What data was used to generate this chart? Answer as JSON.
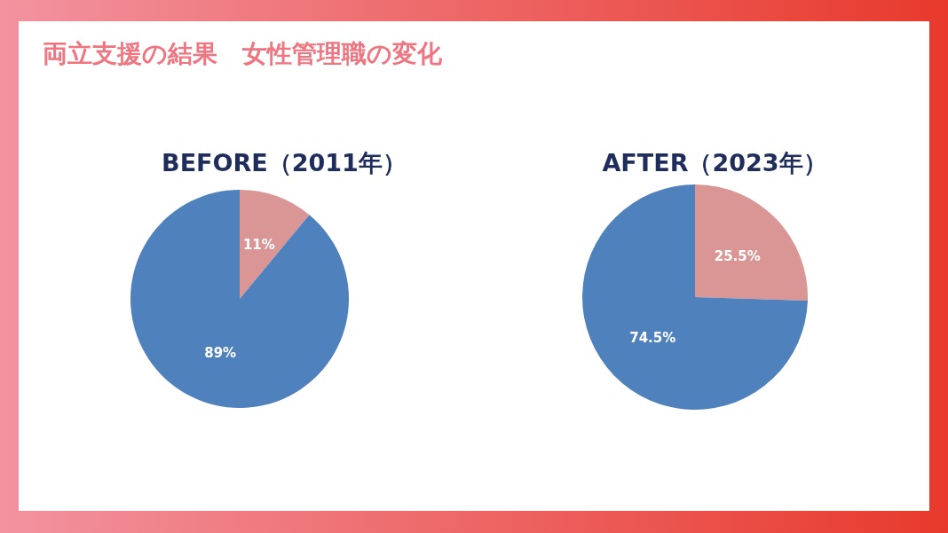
{
  "chart_data": [
    {
      "type": "pie",
      "title": "BEFORE（2011年）",
      "annotations": [
        "両立支援の結果　女性管理職の変化"
      ],
      "categories": [
        null,
        null
      ],
      "values": [
        11,
        89
      ],
      "colors": [
        "#d99694",
        "#4f81bd"
      ],
      "value_labels": [
        "11%",
        "89%"
      ]
    },
    {
      "type": "pie",
      "title": "AFTER（2023年）",
      "categories": [
        null,
        null
      ],
      "values": [
        25.5,
        74.5
      ],
      "colors": [
        "#d99694",
        "#4f81bd"
      ],
      "value_labels": [
        "25.5%",
        "74.5%"
      ]
    }
  ]
}
